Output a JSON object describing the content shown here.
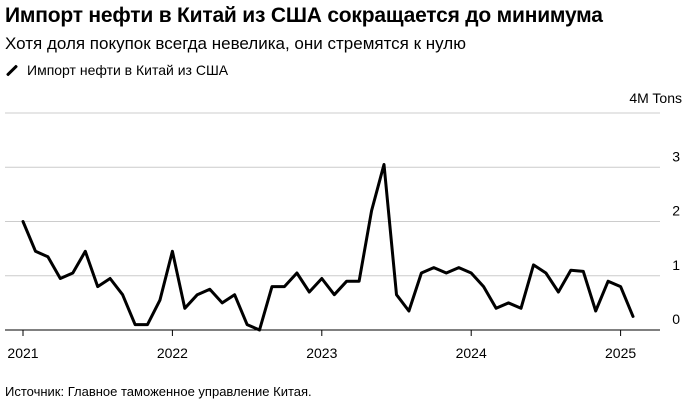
{
  "title": "Импорт нефти в Китай из США сокращается до минимума",
  "subtitle": "Хотя доля покупок всегда невелика, они стремятся к нулю",
  "source": "Источник: Главное таможенное управление Китая.",
  "chart_data": {
    "type": "line",
    "series": [
      {
        "name": "Импорт нефти в Китай из США",
        "color": "#000000",
        "values": [
          2.0,
          1.45,
          1.35,
          0.95,
          1.05,
          1.45,
          0.8,
          0.95,
          0.65,
          0.1,
          0.1,
          0.55,
          1.45,
          0.4,
          0.65,
          0.75,
          0.5,
          0.65,
          0.1,
          0.0,
          0.8,
          0.8,
          1.05,
          0.7,
          0.95,
          0.65,
          0.9,
          0.9,
          2.2,
          3.05,
          0.65,
          0.35,
          1.05,
          1.15,
          1.05,
          1.15,
          1.05,
          0.8,
          0.4,
          0.5,
          0.4,
          1.2,
          1.05,
          0.7,
          1.1,
          1.08,
          0.35,
          0.9,
          0.8,
          0.25
        ]
      }
    ],
    "x_start": "2021-01",
    "x_ticks": [
      {
        "label": "2021",
        "month_index": 0
      },
      {
        "label": "2022",
        "month_index": 12
      },
      {
        "label": "2023",
        "month_index": 24
      },
      {
        "label": "2024",
        "month_index": 36
      },
      {
        "label": "2025",
        "month_index": 48
      }
    ],
    "y_ticks": [
      {
        "label": "0",
        "value": 0
      },
      {
        "label": "1",
        "value": 1
      },
      {
        "label": "2",
        "value": 2
      },
      {
        "label": "3",
        "value": 3
      },
      {
        "label": "4M Tons",
        "value": 4
      }
    ],
    "ylim": [
      0,
      4
    ],
    "x_months_range": [
      0,
      51
    ],
    "grid": true
  }
}
